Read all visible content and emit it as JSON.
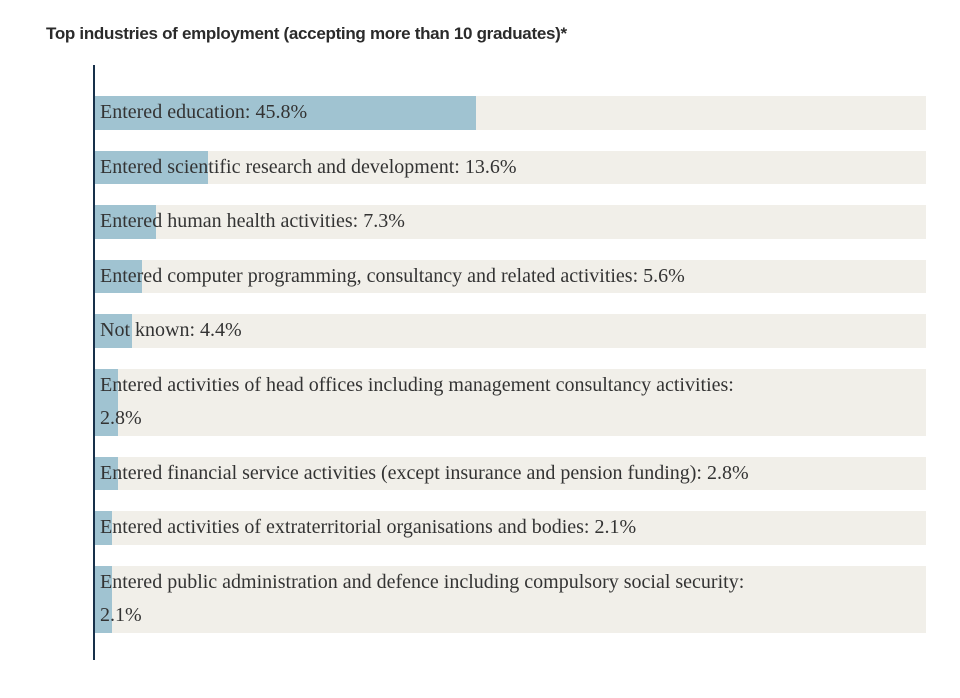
{
  "title": "Top industries of employment (accepting more than 10 graduates)*",
  "colors": {
    "bar_fill": "#a0c3d1",
    "bar_bg": "#f1efe9",
    "axis": "#17304a",
    "label_text": "#333333",
    "title_text": "#2b2b2b",
    "background": "#ffffff"
  },
  "chart_data": {
    "type": "bar",
    "orientation": "horizontal",
    "title": "Top industries of employment (accepting more than 10 graduates)*",
    "value_unit": "%",
    "xlim": [
      0,
      100
    ],
    "grid": false,
    "legend": false,
    "label_position": "inside-start",
    "categories": [
      "Entered education",
      "Entered scientific research and development",
      "Entered human health activities",
      "Entered computer programming, consultancy and related activities",
      "Not known",
      "Entered activities of head offices including management consultancy activities",
      "Entered financial service activities (except insurance and pension funding)",
      "Entered activities of extraterritorial organisations and bodies",
      "Entered public administration and defence including compulsory social security"
    ],
    "values": [
      45.8,
      13.6,
      7.3,
      5.6,
      4.4,
      2.8,
      2.8,
      2.1,
      2.1
    ],
    "rows": [
      {
        "label": "Entered education",
        "pct": 45.8,
        "lines": [
          "Entered education: 45.8%"
        ]
      },
      {
        "label": "Entered scientific research and development",
        "pct": 13.6,
        "lines": [
          "Entered scientific research and development: 13.6%"
        ]
      },
      {
        "label": "Entered human health activities",
        "pct": 7.3,
        "lines": [
          "Entered human health activities: 7.3%"
        ]
      },
      {
        "label": "Entered computer programming, consultancy and related activities",
        "pct": 5.6,
        "lines": [
          "Entered computer programming, consultancy and related activities: 5.6%"
        ]
      },
      {
        "label": "Not known",
        "pct": 4.4,
        "lines": [
          "Not known: 4.4%"
        ]
      },
      {
        "label": "Entered activities of head offices including management consultancy activities",
        "pct": 2.8,
        "lines": [
          "Entered activities of head offices including management consultancy activities:",
          "2.8%"
        ]
      },
      {
        "label": "Entered financial service activities (except insurance and pension funding)",
        "pct": 2.8,
        "lines": [
          "Entered financial service activities (except insurance and pension funding): 2.8%"
        ]
      },
      {
        "label": "Entered activities of extraterritorial organisations and bodies",
        "pct": 2.1,
        "lines": [
          "Entered activities of extraterritorial organisations and bodies: 2.1%"
        ]
      },
      {
        "label": "Entered public administration and defence including compulsory social security",
        "pct": 2.1,
        "lines": [
          "Entered public administration and defence including compulsory social security:",
          "2.1%"
        ]
      }
    ]
  }
}
